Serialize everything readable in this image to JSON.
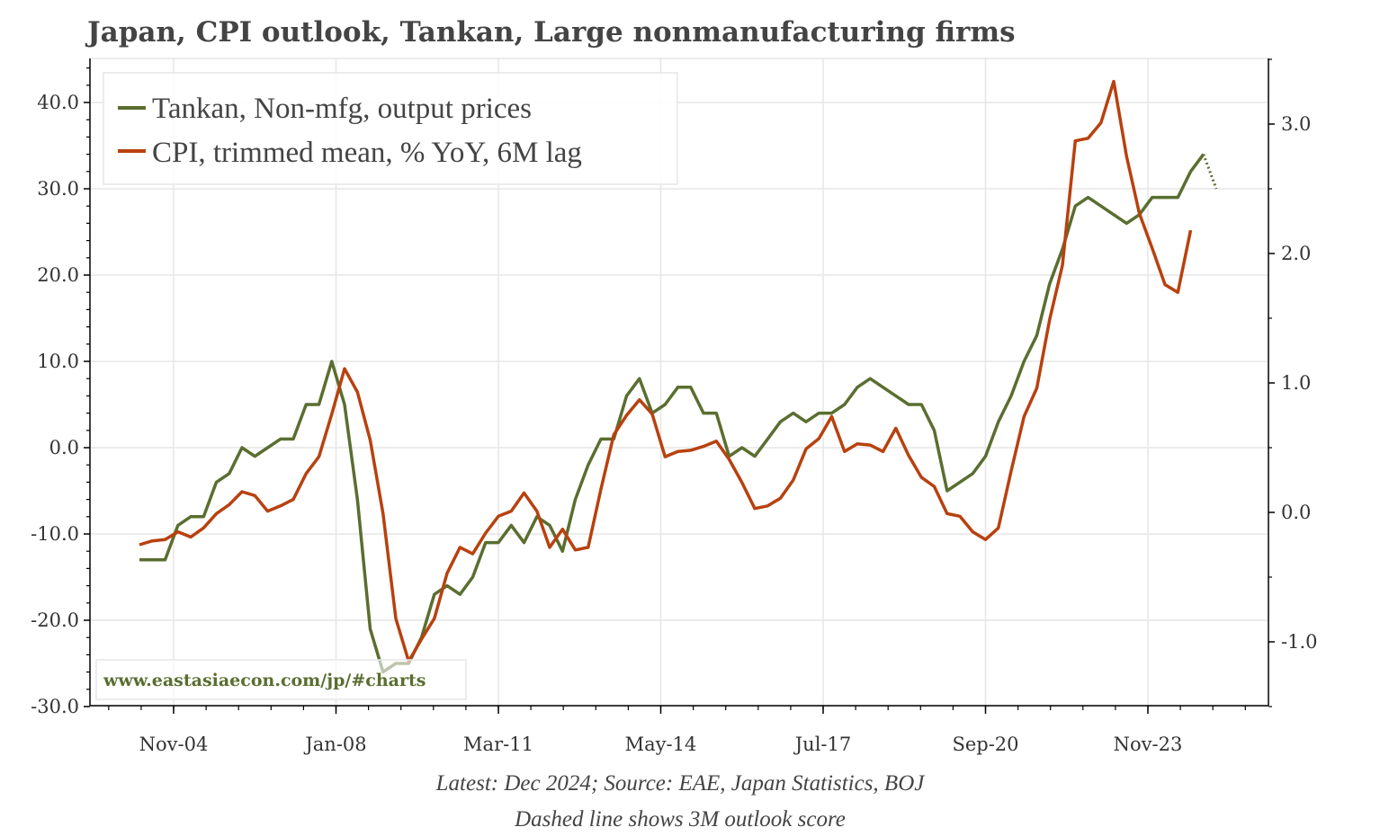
{
  "chart_data": {
    "type": "line",
    "title": "Japan, CPI outlook, Tankan, Large nonmanufacturing firms",
    "notes": [
      "Latest: Dec 2024; Source: EAE, Japan Statistics, BOJ",
      "Dashed line shows 3M outlook score"
    ],
    "watermark": "www.eastasiaecon.com/jp/#charts",
    "legend_position": "top-left",
    "grid": true,
    "x_ticks": [
      "Nov-04",
      "Jan-08",
      "Mar-11",
      "May-14",
      "Jul-17",
      "Sep-20",
      "Nov-23"
    ],
    "y_left": {
      "ticks": [
        "-30.0",
        "-20.0",
        "-10.0",
        "0.0",
        "10.0",
        "20.0",
        "30.0",
        "40.0"
      ],
      "range": [
        -30,
        45
      ]
    },
    "y_right": {
      "ticks": [
        "-1.0",
        "0.0",
        "1.0",
        "2.0",
        "3.0"
      ],
      "range": [
        -1.5,
        3.5
      ]
    },
    "x": [
      "Mar-04",
      "Jun-04",
      "Sep-04",
      "Dec-04",
      "Mar-05",
      "Jun-05",
      "Sep-05",
      "Dec-05",
      "Mar-06",
      "Jun-06",
      "Sep-06",
      "Dec-06",
      "Mar-07",
      "Jun-07",
      "Sep-07",
      "Dec-07",
      "Mar-08",
      "Jun-08",
      "Sep-08",
      "Dec-08",
      "Mar-09",
      "Jun-09",
      "Sep-09",
      "Dec-09",
      "Mar-10",
      "Jun-10",
      "Sep-10",
      "Dec-10",
      "Mar-11",
      "Jun-11",
      "Sep-11",
      "Dec-11",
      "Mar-12",
      "Jun-12",
      "Sep-12",
      "Dec-12",
      "Mar-13",
      "Jun-13",
      "Sep-13",
      "Dec-13",
      "Mar-14",
      "Jun-14",
      "Sep-14",
      "Dec-14",
      "Mar-15",
      "Jun-15",
      "Sep-15",
      "Dec-15",
      "Mar-16",
      "Jun-16",
      "Sep-16",
      "Dec-16",
      "Mar-17",
      "Jun-17",
      "Sep-17",
      "Dec-17",
      "Mar-18",
      "Jun-18",
      "Sep-18",
      "Dec-18",
      "Mar-19",
      "Jun-19",
      "Sep-19",
      "Dec-19",
      "Mar-20",
      "Jun-20",
      "Sep-20",
      "Dec-20",
      "Mar-21",
      "Jun-21",
      "Sep-21",
      "Dec-21",
      "Mar-22",
      "Jun-22",
      "Sep-22",
      "Dec-22",
      "Mar-23",
      "Jun-23",
      "Sep-23",
      "Dec-23",
      "Mar-24",
      "Jun-24",
      "Sep-24",
      "Dec-24"
    ],
    "series": [
      {
        "name": "Tankan, Non-mfg, output prices",
        "axis": "left",
        "color": "#5a6e30",
        "values": [
          -13,
          -13,
          -13,
          -9,
          -8,
          -8,
          -4,
          -3,
          0,
          -1,
          0,
          1,
          1,
          5,
          5,
          10,
          5,
          -6,
          -21,
          -26,
          -25,
          -25,
          -22,
          -17,
          -16,
          -17,
          -15,
          -11,
          -11,
          -9,
          -11,
          -8,
          -9,
          -12,
          -6,
          -2,
          1,
          1,
          6,
          8,
          4,
          5,
          7,
          7,
          4,
          4,
          -1,
          0,
          -1,
          1,
          3,
          4,
          3,
          4,
          4,
          5,
          7,
          8,
          7,
          6,
          5,
          5,
          2,
          -5,
          -4,
          -3,
          -1,
          3,
          6,
          10,
          13,
          19,
          23,
          28,
          29,
          28,
          27,
          26,
          27,
          29,
          29,
          29,
          32,
          34
        ],
        "outlook": {
          "x": "Mar-25",
          "value": 30
        }
      },
      {
        "name": "CPI, trimmed mean, % YoY, 6M lag",
        "axis": "right",
        "color": "#b8410f",
        "values": [
          -0.25,
          -0.22,
          -0.21,
          -0.15,
          -0.19,
          -0.12,
          -0.01,
          0.06,
          0.16,
          0.13,
          0.01,
          0.05,
          0.1,
          0.3,
          0.43,
          0.76,
          1.11,
          0.93,
          0.56,
          -0.01,
          -0.82,
          -1.15,
          -0.98,
          -0.82,
          -0.47,
          -0.27,
          -0.32,
          -0.16,
          -0.03,
          0.01,
          0.15,
          0.01,
          -0.27,
          -0.13,
          -0.29,
          -0.27,
          0.18,
          0.6,
          0.75,
          0.87,
          0.76,
          0.43,
          0.47,
          0.48,
          0.51,
          0.55,
          0.41,
          0.23,
          0.03,
          0.05,
          0.11,
          0.25,
          0.49,
          0.57,
          0.74,
          0.47,
          0.53,
          0.52,
          0.47,
          0.65,
          0.44,
          0.27,
          0.2,
          -0.01,
          -0.03,
          -0.15,
          -0.21,
          -0.12,
          0.32,
          0.74,
          0.96,
          1.49,
          1.91,
          2.87,
          2.89,
          3.01,
          3.33,
          2.75,
          2.31,
          2.04,
          1.76,
          1.7,
          2.18,
          null
        ]
      }
    ]
  }
}
